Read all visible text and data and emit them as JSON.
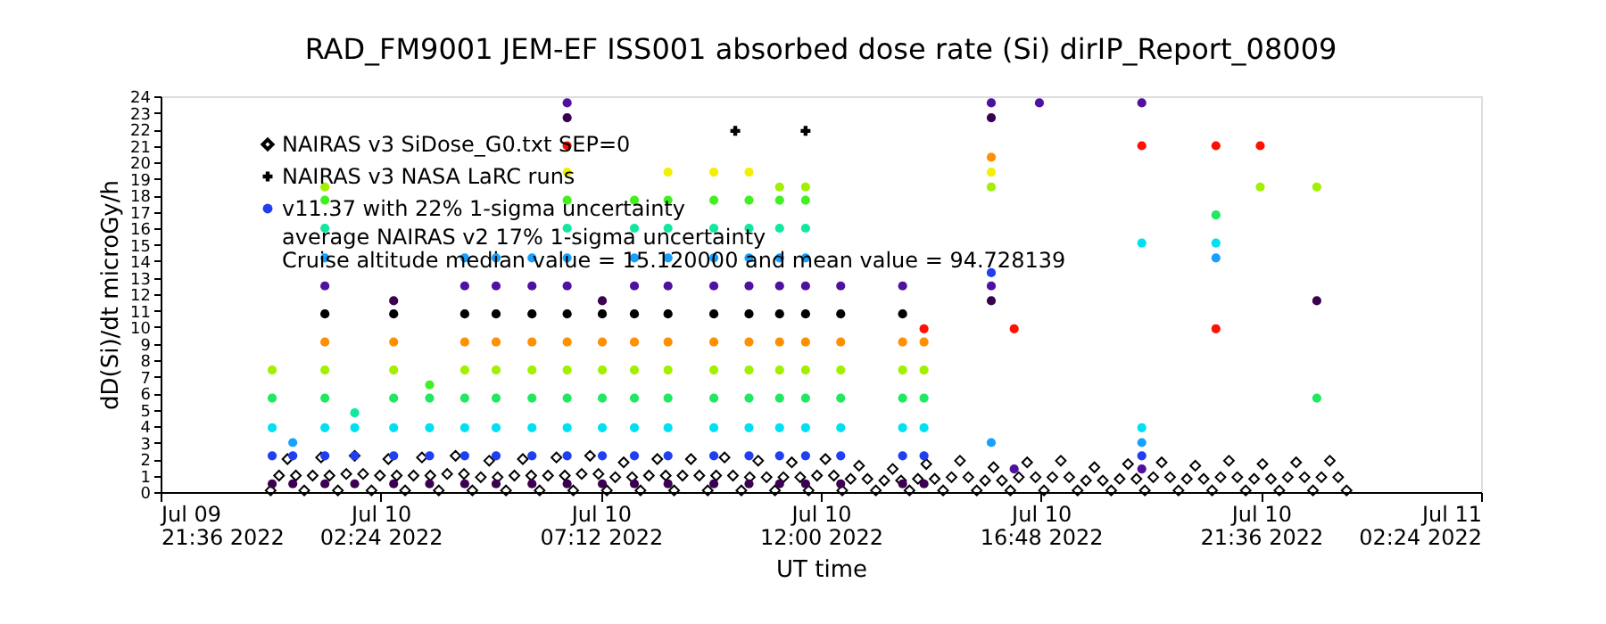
{
  "chart_data": {
    "type": "scatter",
    "title": "RAD_FM9001  JEM-EF ISS001 absorbed dose rate (Si) dirIP_Report_08009",
    "xlabel": "UT time",
    "ylabel": "dD(Si)/dt microGy/h",
    "xlim": [
      "2022-07-09T21:36",
      "2022-07-11T02:24"
    ],
    "xticks": [
      {
        "value": "2022-07-09T21:36",
        "label": "Jul 09\n21:36 2022"
      },
      {
        "value": "2022-07-10T02:24",
        "label": "Jul 10\n02:24 2022"
      },
      {
        "value": "2022-07-10T07:12",
        "label": "Jul 10\n07:12 2022"
      },
      {
        "value": "2022-07-10T12:00",
        "label": "Jul 10\n12:00 2022"
      },
      {
        "value": "2022-07-10T16:48",
        "label": "Jul 10\n16:48 2022"
      },
      {
        "value": "2022-07-10T21:36",
        "label": "Jul 10\n21:36 2022"
      },
      {
        "value": "2022-07-11T02:24",
        "label": "Jul 11\n02:24 2022"
      }
    ],
    "ylim": [
      0,
      24
    ],
    "yticks": [
      0,
      1,
      2,
      3,
      4,
      5,
      6,
      7,
      8,
      9,
      10,
      11,
      12,
      13,
      14,
      15,
      16,
      17,
      18,
      19,
      20,
      21,
      22,
      23,
      24
    ],
    "grid": false,
    "legend": "top left",
    "annotations": [
      "average NAIRAS v2 17% 1-sigma uncertainty",
      "Cruise altitude median value = 15.120000 and mean value = 94.728139"
    ],
    "series": [
      {
        "name": "NAIRAS v3 SiDose_G0.txt SEP=0",
        "marker": "diamond",
        "color": "#000000",
        "x": [
          "2022-07-10T00:00",
          "2022-07-10T00:11",
          "2022-07-10T00:22",
          "2022-07-10T00:33",
          "2022-07-10T00:44",
          "2022-07-10T00:55",
          "2022-07-10T01:06",
          "2022-07-10T01:17",
          "2022-07-10T01:28",
          "2022-07-10T01:39",
          "2022-07-10T01:50",
          "2022-07-10T02:01",
          "2022-07-10T02:12",
          "2022-07-10T02:23",
          "2022-07-10T02:34",
          "2022-07-10T02:45",
          "2022-07-10T02:56",
          "2022-07-10T03:07",
          "2022-07-10T03:18",
          "2022-07-10T03:29",
          "2022-07-10T03:40",
          "2022-07-10T03:51",
          "2022-07-10T04:02",
          "2022-07-10T04:13",
          "2022-07-10T04:24",
          "2022-07-10T04:35",
          "2022-07-10T04:46",
          "2022-07-10T04:57",
          "2022-07-10T05:08",
          "2022-07-10T05:19",
          "2022-07-10T05:30",
          "2022-07-10T05:41",
          "2022-07-10T05:52",
          "2022-07-10T06:03",
          "2022-07-10T06:14",
          "2022-07-10T06:25",
          "2022-07-10T06:36",
          "2022-07-10T06:47",
          "2022-07-10T06:58",
          "2022-07-10T07:09",
          "2022-07-10T07:20",
          "2022-07-10T07:31",
          "2022-07-10T07:42",
          "2022-07-10T07:53",
          "2022-07-10T08:04",
          "2022-07-10T08:15",
          "2022-07-10T08:26",
          "2022-07-10T08:37",
          "2022-07-10T08:48",
          "2022-07-10T08:59",
          "2022-07-10T09:10",
          "2022-07-10T09:21",
          "2022-07-10T09:32",
          "2022-07-10T09:43",
          "2022-07-10T09:54",
          "2022-07-10T10:05",
          "2022-07-10T10:16",
          "2022-07-10T10:27",
          "2022-07-10T10:38",
          "2022-07-10T10:49",
          "2022-07-10T11:00",
          "2022-07-10T11:11",
          "2022-07-10T11:22",
          "2022-07-10T11:33",
          "2022-07-10T11:44",
          "2022-07-10T11:55",
          "2022-07-10T12:06",
          "2022-07-10T12:17",
          "2022-07-10T12:28",
          "2022-07-10T12:39",
          "2022-07-10T12:50",
          "2022-07-10T13:01",
          "2022-07-10T13:12",
          "2022-07-10T13:23",
          "2022-07-10T13:34",
          "2022-07-10T13:45",
          "2022-07-10T13:56",
          "2022-07-10T14:07",
          "2022-07-10T14:18",
          "2022-07-10T14:29",
          "2022-07-10T14:40",
          "2022-07-10T14:51",
          "2022-07-10T15:02",
          "2022-07-10T15:13",
          "2022-07-10T15:24",
          "2022-07-10T15:35",
          "2022-07-10T15:46",
          "2022-07-10T15:57",
          "2022-07-10T16:08",
          "2022-07-10T16:19",
          "2022-07-10T16:30",
          "2022-07-10T16:41",
          "2022-07-10T16:52",
          "2022-07-10T17:03",
          "2022-07-10T17:14",
          "2022-07-10T17:25",
          "2022-07-10T17:36",
          "2022-07-10T17:47",
          "2022-07-10T17:58",
          "2022-07-10T18:09",
          "2022-07-10T18:20",
          "2022-07-10T18:31",
          "2022-07-10T18:42",
          "2022-07-10T18:53",
          "2022-07-10T19:04",
          "2022-07-10T19:15",
          "2022-07-10T19:26",
          "2022-07-10T19:37",
          "2022-07-10T19:48",
          "2022-07-10T19:59",
          "2022-07-10T20:10",
          "2022-07-10T20:21",
          "2022-07-10T20:32",
          "2022-07-10T20:43",
          "2022-07-10T20:54",
          "2022-07-10T21:05",
          "2022-07-10T21:16",
          "2022-07-10T21:27",
          "2022-07-10T21:38",
          "2022-07-10T21:49",
          "2022-07-10T22:00",
          "2022-07-10T22:11",
          "2022-07-10T22:22",
          "2022-07-10T22:33",
          "2022-07-10T22:44",
          "2022-07-10T22:55",
          "2022-07-10T23:06",
          "2022-07-10T23:17",
          "2022-07-10T23:28"
        ],
        "values": [
          0.1,
          1.0,
          2.0,
          1.0,
          0.1,
          1.0,
          2.1,
          1.0,
          0.1,
          1.1,
          2.2,
          1.1,
          0.1,
          1.0,
          2.0,
          1.0,
          0.1,
          1.0,
          2.1,
          1.0,
          0.1,
          1.1,
          2.2,
          1.1,
          0.1,
          0.9,
          1.9,
          0.9,
          0.1,
          1.0,
          2.0,
          1.0,
          0.1,
          1.0,
          2.1,
          1.0,
          0.1,
          1.1,
          2.2,
          1.1,
          0.1,
          0.9,
          1.8,
          0.9,
          0.1,
          1.0,
          2.0,
          1.0,
          0.1,
          1.0,
          2.0,
          1.0,
          0.1,
          1.0,
          2.1,
          1.0,
          0.1,
          0.9,
          1.9,
          0.9,
          0.1,
          0.9,
          1.8,
          0.9,
          0.1,
          1.0,
          2.0,
          1.0,
          0.1,
          0.8,
          1.6,
          0.8,
          0.1,
          0.7,
          1.4,
          0.7,
          0.1,
          0.8,
          1.7,
          0.8,
          0.1,
          0.9,
          1.9,
          0.9,
          0.1,
          0.7,
          1.5,
          0.7,
          0.1,
          0.9,
          1.8,
          0.9,
          0.1,
          0.9,
          1.9,
          0.9,
          0.1,
          0.7,
          1.5,
          0.7,
          0.1,
          0.8,
          1.7,
          0.8,
          0.1,
          0.9,
          1.8,
          0.9,
          0.1,
          0.8,
          1.6,
          0.8,
          0.1,
          0.9,
          1.9,
          0.9,
          0.1,
          0.8,
          1.7,
          0.8,
          0.1,
          0.9,
          1.8,
          0.9,
          0.1,
          0.9,
          1.9,
          0.9,
          0.1
        ]
      },
      {
        "name": "NAIRAS v3 NASA LaRC runs",
        "marker": "cross",
        "color": "#000000",
        "x": [
          "2022-07-10T10:08",
          "2022-07-10T11:40"
        ],
        "values": [
          21.9,
          21.9
        ]
      },
      {
        "name": "v11.37 with 22% 1-sigma uncertainty",
        "marker": "circle",
        "color": "#2040f0",
        "x": [
          "2022-07-10T00:02",
          "2022-07-10T00:02",
          "2022-07-10T00:02",
          "2022-07-10T00:02",
          "2022-07-10T00:02",
          "2022-07-10T00:29",
          "2022-07-10T00:29",
          "2022-07-10T00:29",
          "2022-07-10T01:11",
          "2022-07-10T01:11",
          "2022-07-10T01:11",
          "2022-07-10T01:11",
          "2022-07-10T01:11",
          "2022-07-10T01:11",
          "2022-07-10T01:11",
          "2022-07-10T01:11",
          "2022-07-10T01:11",
          "2022-07-10T01:11",
          "2022-07-10T01:11",
          "2022-07-10T01:11",
          "2022-07-10T01:50",
          "2022-07-10T01:50",
          "2022-07-10T01:50",
          "2022-07-10T01:50",
          "2022-07-10T02:41",
          "2022-07-10T02:41",
          "2022-07-10T02:41",
          "2022-07-10T02:41",
          "2022-07-10T02:41",
          "2022-07-10T02:41",
          "2022-07-10T02:41",
          "2022-07-10T02:41",
          "2022-07-10T03:28",
          "2022-07-10T03:28",
          "2022-07-10T03:28",
          "2022-07-10T03:28",
          "2022-07-10T03:28",
          "2022-07-10T04:14",
          "2022-07-10T04:14",
          "2022-07-10T04:14",
          "2022-07-10T04:14",
          "2022-07-10T04:14",
          "2022-07-10T04:14",
          "2022-07-10T04:14",
          "2022-07-10T04:14",
          "2022-07-10T04:14",
          "2022-07-10T04:55",
          "2022-07-10T04:55",
          "2022-07-10T04:55",
          "2022-07-10T04:55",
          "2022-07-10T04:55",
          "2022-07-10T04:55",
          "2022-07-10T04:55",
          "2022-07-10T04:55",
          "2022-07-10T04:55",
          "2022-07-10T05:42",
          "2022-07-10T05:42",
          "2022-07-10T05:42",
          "2022-07-10T05:42",
          "2022-07-10T05:42",
          "2022-07-10T05:42",
          "2022-07-10T05:42",
          "2022-07-10T05:42",
          "2022-07-10T05:42",
          "2022-07-10T06:28",
          "2022-07-10T06:28",
          "2022-07-10T06:28",
          "2022-07-10T06:28",
          "2022-07-10T06:28",
          "2022-07-10T06:28",
          "2022-07-10T06:28",
          "2022-07-10T06:28",
          "2022-07-10T06:28",
          "2022-07-10T06:28",
          "2022-07-10T06:28",
          "2022-07-10T06:28",
          "2022-07-10T06:28",
          "2022-07-10T06:28",
          "2022-07-10T06:28",
          "2022-07-10T07:14",
          "2022-07-10T07:14",
          "2022-07-10T07:14",
          "2022-07-10T07:14",
          "2022-07-10T07:14",
          "2022-07-10T07:14",
          "2022-07-10T07:14",
          "2022-07-10T07:14",
          "2022-07-10T07:56",
          "2022-07-10T07:56",
          "2022-07-10T07:56",
          "2022-07-10T07:56",
          "2022-07-10T07:56",
          "2022-07-10T07:56",
          "2022-07-10T07:56",
          "2022-07-10T07:56",
          "2022-07-10T07:56",
          "2022-07-10T07:56",
          "2022-07-10T07:56",
          "2022-07-10T08:40",
          "2022-07-10T08:40",
          "2022-07-10T08:40",
          "2022-07-10T08:40",
          "2022-07-10T08:40",
          "2022-07-10T08:40",
          "2022-07-10T08:40",
          "2022-07-10T08:40",
          "2022-07-10T08:40",
          "2022-07-10T08:40",
          "2022-07-10T08:40",
          "2022-07-10T08:40",
          "2022-07-10T09:40",
          "2022-07-10T09:40",
          "2022-07-10T09:40",
          "2022-07-10T09:40",
          "2022-07-10T09:40",
          "2022-07-10T09:40",
          "2022-07-10T09:40",
          "2022-07-10T09:40",
          "2022-07-10T09:40",
          "2022-07-10T09:40",
          "2022-07-10T09:40",
          "2022-07-10T09:40",
          "2022-07-10T10:26",
          "2022-07-10T10:26",
          "2022-07-10T10:26",
          "2022-07-10T10:26",
          "2022-07-10T10:26",
          "2022-07-10T10:26",
          "2022-07-10T10:26",
          "2022-07-10T10:26",
          "2022-07-10T10:26",
          "2022-07-10T10:26",
          "2022-07-10T10:26",
          "2022-07-10T10:26",
          "2022-07-10T11:06",
          "2022-07-10T11:06",
          "2022-07-10T11:06",
          "2022-07-10T11:06",
          "2022-07-10T11:06",
          "2022-07-10T11:06",
          "2022-07-10T11:06",
          "2022-07-10T11:06",
          "2022-07-10T11:06",
          "2022-07-10T11:06",
          "2022-07-10T11:06",
          "2022-07-10T11:06",
          "2022-07-10T11:40",
          "2022-07-10T11:40",
          "2022-07-10T11:40",
          "2022-07-10T11:40",
          "2022-07-10T11:40",
          "2022-07-10T11:40",
          "2022-07-10T11:40",
          "2022-07-10T11:40",
          "2022-07-10T11:40",
          "2022-07-10T11:40",
          "2022-07-10T11:40",
          "2022-07-10T11:40",
          "2022-07-10T12:26",
          "2022-07-10T12:26",
          "2022-07-10T12:26",
          "2022-07-10T12:26",
          "2022-07-10T12:26",
          "2022-07-10T12:26",
          "2022-07-10T12:26",
          "2022-07-10T12:26",
          "2022-07-10T13:47",
          "2022-07-10T13:47",
          "2022-07-10T13:47",
          "2022-07-10T13:47",
          "2022-07-10T13:47",
          "2022-07-10T13:47",
          "2022-07-10T13:47",
          "2022-07-10T13:47",
          "2022-07-10T14:15",
          "2022-07-10T14:15",
          "2022-07-10T14:15",
          "2022-07-10T14:15",
          "2022-07-10T14:15",
          "2022-07-10T14:15",
          "2022-07-10T14:15",
          "2022-07-10T15:43",
          "2022-07-10T15:43",
          "2022-07-10T15:43",
          "2022-07-10T15:43",
          "2022-07-10T15:43",
          "2022-07-10T15:43",
          "2022-07-10T15:43",
          "2022-07-10T15:43",
          "2022-07-10T15:43",
          "2022-07-10T16:13",
          "2022-07-10T16:13",
          "2022-07-10T16:46",
          "2022-07-10T19:00",
          "2022-07-10T19:00",
          "2022-07-10T19:00",
          "2022-07-10T19:00",
          "2022-07-10T19:00",
          "2022-07-10T19:00",
          "2022-07-10T19:00",
          "2022-07-10T20:37",
          "2022-07-10T20:37",
          "2022-07-10T20:37",
          "2022-07-10T20:37",
          "2022-07-10T20:37",
          "2022-07-10T21:35",
          "2022-07-10T21:35",
          "2022-07-10T22:49",
          "2022-07-10T22:49",
          "2022-07-10T22:49"
        ],
        "values": [
          0.5,
          2.2,
          3.9,
          5.7,
          7.4,
          0.5,
          2.2,
          3.0,
          0.5,
          2.2,
          3.9,
          5.7,
          7.4,
          9.1,
          10.8,
          12.5,
          14.2,
          16.0,
          17.7,
          18.5,
          0.5,
          2.2,
          3.9,
          4.8,
          0.5,
          2.2,
          3.9,
          5.7,
          7.4,
          9.1,
          10.8,
          11.6,
          0.5,
          2.2,
          3.9,
          5.7,
          6.5,
          0.5,
          2.2,
          3.9,
          5.7,
          7.4,
          9.1,
          10.8,
          12.5,
          14.2,
          0.5,
          2.2,
          3.9,
          5.7,
          7.4,
          9.1,
          10.8,
          12.5,
          14.2,
          0.5,
          2.2,
          3.9,
          5.7,
          7.4,
          9.1,
          10.8,
          12.5,
          14.2,
          0.5,
          2.2,
          3.9,
          5.7,
          7.4,
          9.1,
          10.8,
          12.5,
          14.2,
          16.0,
          17.7,
          19.4,
          21.0,
          22.7,
          23.6,
          0.5,
          2.2,
          3.9,
          5.7,
          7.4,
          9.1,
          10.8,
          11.6,
          0.5,
          2.2,
          3.9,
          5.7,
          7.4,
          9.1,
          10.8,
          12.5,
          14.2,
          16.0,
          17.7,
          0.5,
          2.2,
          3.9,
          5.7,
          7.4,
          9.1,
          10.8,
          12.5,
          14.2,
          16.0,
          17.7,
          19.4,
          0.5,
          2.2,
          3.9,
          5.7,
          7.4,
          9.1,
          10.8,
          12.5,
          14.2,
          16.0,
          17.7,
          19.4,
          0.5,
          2.2,
          3.9,
          5.7,
          7.4,
          9.1,
          10.8,
          12.5,
          14.2,
          16.0,
          17.7,
          19.4,
          0.5,
          2.2,
          3.9,
          5.7,
          7.4,
          9.1,
          10.8,
          12.5,
          14.2,
          16.0,
          17.7,
          18.5,
          0.5,
          2.2,
          3.9,
          5.7,
          7.4,
          9.1,
          10.8,
          12.5,
          14.2,
          16.0,
          17.7,
          18.5,
          0.5,
          2.2,
          3.9,
          5.7,
          7.4,
          9.1,
          10.8,
          12.5,
          0.5,
          2.2,
          3.9,
          5.7,
          7.4,
          9.1,
          10.8,
          12.5,
          0.5,
          2.2,
          3.9,
          5.7,
          7.4,
          9.1,
          9.9,
          3.0,
          11.6,
          12.5,
          13.3,
          18.5,
          19.4,
          20.3,
          22.7,
          23.6,
          1.4,
          9.9,
          23.6,
          1.4,
          2.2,
          3.0,
          3.9,
          15.1,
          21.0,
          23.6,
          9.9,
          14.2,
          15.1,
          16.8,
          21.0,
          18.5,
          21.0,
          5.7,
          11.6,
          18.5
        ],
        "colors": [
          "#3c0050",
          "#2040f0",
          "#00e0f0",
          "#20e860",
          "#a0f000",
          "#3c0050",
          "#2040f0",
          "#18a0ff",
          "#3c0050",
          "#2040f0",
          "#00e0f0",
          "#20e860",
          "#a0f000",
          "#ff9000",
          "#000000",
          "#5010a0",
          "#18a0ff",
          "#10e8a0",
          "#40f020",
          "#a0f000",
          "#3c0050",
          "#2040f0",
          "#00e0f0",
          "#10e8a0",
          "#3c0050",
          "#2040f0",
          "#00e0f0",
          "#20e860",
          "#a0f000",
          "#ff9000",
          "#000000",
          "#3c0050",
          "#3c0050",
          "#2040f0",
          "#00e0f0",
          "#20e860",
          "#40f020",
          "#3c0050",
          "#2040f0",
          "#00e0f0",
          "#20e860",
          "#a0f000",
          "#ff9000",
          "#000000",
          "#5010a0",
          "#18a0ff",
          "#3c0050",
          "#2040f0",
          "#00e0f0",
          "#20e860",
          "#a0f000",
          "#ff9000",
          "#000000",
          "#5010a0",
          "#18a0ff",
          "#3c0050",
          "#2040f0",
          "#00e0f0",
          "#20e860",
          "#a0f000",
          "#ff9000",
          "#000000",
          "#5010a0",
          "#18a0ff",
          "#3c0050",
          "#2040f0",
          "#00e0f0",
          "#20e860",
          "#a0f000",
          "#ff9000",
          "#000000",
          "#5010a0",
          "#18a0ff",
          "#10e8a0",
          "#40f020",
          "#f0f000",
          "#ff1000",
          "#3c0050",
          "#5010a0",
          "#3c0050",
          "#2040f0",
          "#00e0f0",
          "#20e860",
          "#a0f000",
          "#ff9000",
          "#000000",
          "#3c0050",
          "#3c0050",
          "#2040f0",
          "#00e0f0",
          "#20e860",
          "#a0f000",
          "#ff9000",
          "#000000",
          "#5010a0",
          "#18a0ff",
          "#10e8a0",
          "#40f020",
          "#3c0050",
          "#2040f0",
          "#00e0f0",
          "#20e860",
          "#a0f000",
          "#ff9000",
          "#000000",
          "#5010a0",
          "#18a0ff",
          "#10e8a0",
          "#40f020",
          "#f0f000",
          "#3c0050",
          "#2040f0",
          "#00e0f0",
          "#20e860",
          "#a0f000",
          "#ff9000",
          "#000000",
          "#5010a0",
          "#18a0ff",
          "#10e8a0",
          "#40f020",
          "#f0f000",
          "#3c0050",
          "#2040f0",
          "#00e0f0",
          "#20e860",
          "#a0f000",
          "#ff9000",
          "#000000",
          "#5010a0",
          "#18a0ff",
          "#10e8a0",
          "#40f020",
          "#f0f000",
          "#3c0050",
          "#2040f0",
          "#00e0f0",
          "#20e860",
          "#a0f000",
          "#ff9000",
          "#000000",
          "#5010a0",
          "#18a0ff",
          "#10e8a0",
          "#40f020",
          "#a0f000",
          "#3c0050",
          "#2040f0",
          "#00e0f0",
          "#20e860",
          "#a0f000",
          "#ff9000",
          "#000000",
          "#5010a0",
          "#18a0ff",
          "#10e8a0",
          "#40f020",
          "#a0f000",
          "#3c0050",
          "#2040f0",
          "#00e0f0",
          "#20e860",
          "#a0f000",
          "#ff9000",
          "#000000",
          "#5010a0",
          "#3c0050",
          "#2040f0",
          "#00e0f0",
          "#20e860",
          "#a0f000",
          "#ff9000",
          "#000000",
          "#5010a0",
          "#3c0050",
          "#2040f0",
          "#00e0f0",
          "#20e860",
          "#a0f000",
          "#ff9000",
          "#ff1000",
          "#18a0ff",
          "#3c0050",
          "#5010a0",
          "#2040f0",
          "#a0f000",
          "#f0f000",
          "#ff9000",
          "#3c0050",
          "#5010a0",
          "#5010a0",
          "#ff1000",
          "#5010a0",
          "#5010a0",
          "#2040f0",
          "#18a0ff",
          "#00e0f0",
          "#00e0f0",
          "#ff1000",
          "#5010a0",
          "#ff1000",
          "#18a0ff",
          "#00e0f0",
          "#20e860",
          "#ff1000",
          "#a0f000",
          "#ff1000",
          "#20e860",
          "#3c0050",
          "#a0f000"
        ]
      }
    ]
  }
}
